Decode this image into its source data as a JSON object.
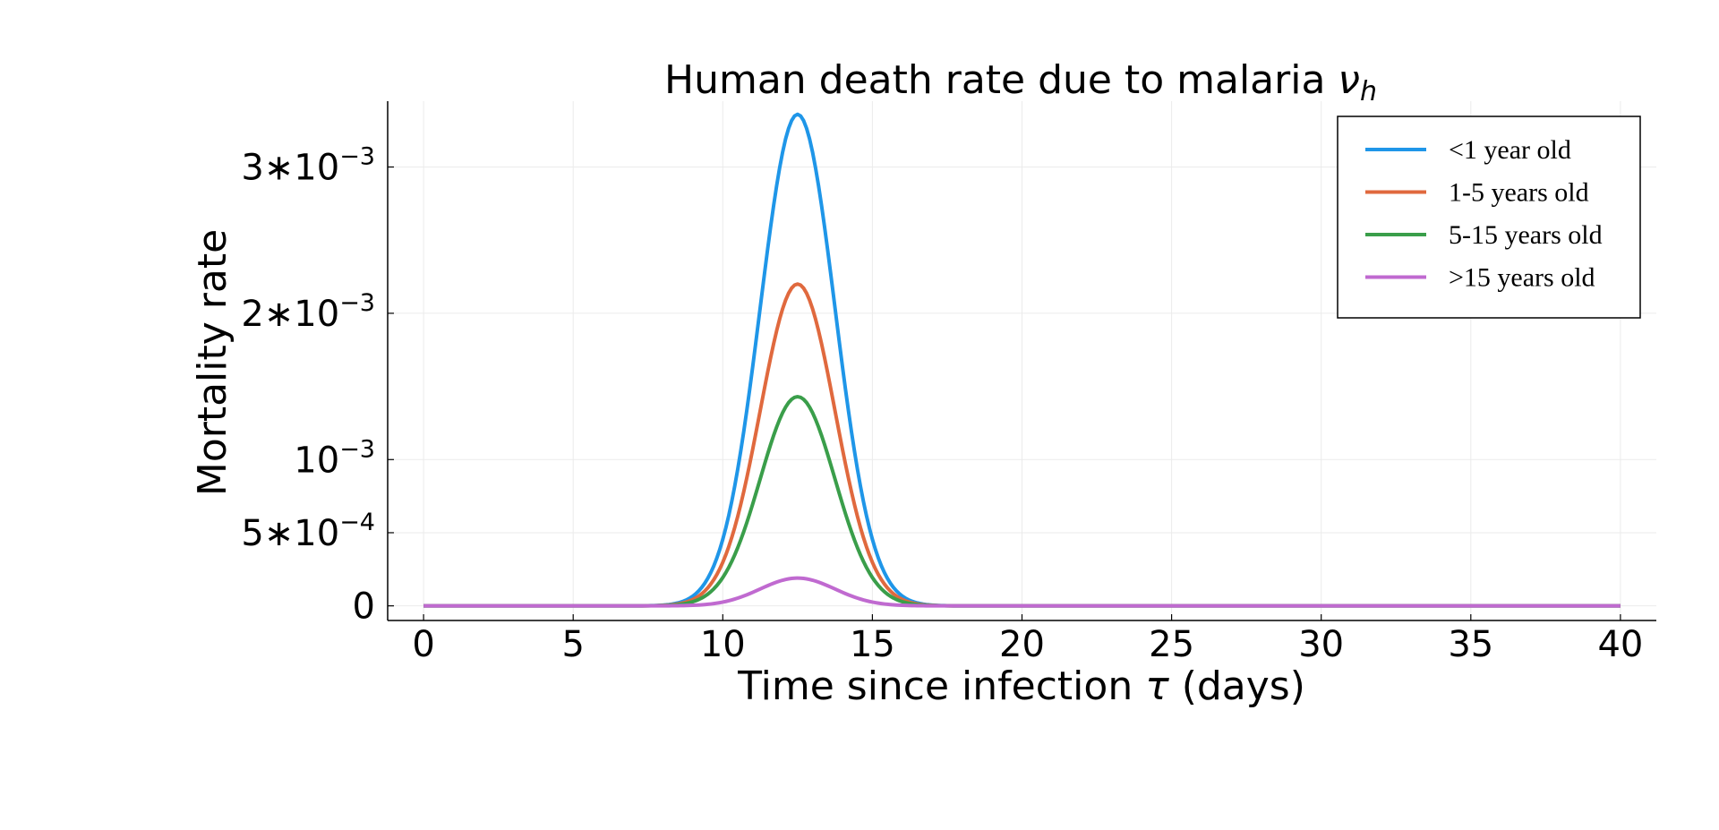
{
  "chart_data": {
    "type": "line",
    "title": "Human death rate due to malaria ",
    "title_symbol": "ν",
    "title_subscript": "h",
    "xlabel_prefix": "Time since infection ",
    "xlabel_symbol": "τ",
    "xlabel_suffix": " (days)",
    "ylabel": "Mortality rate",
    "xlim": [
      -1.2,
      41.2
    ],
    "ylim": [
      -0.0001,
      0.00345
    ],
    "x_ticks": [
      {
        "value": 0,
        "label": "0"
      },
      {
        "value": 5,
        "label": "5"
      },
      {
        "value": 10,
        "label": "10"
      },
      {
        "value": 15,
        "label": "15"
      },
      {
        "value": 20,
        "label": "20"
      },
      {
        "value": 25,
        "label": "25"
      },
      {
        "value": 30,
        "label": "30"
      },
      {
        "value": 35,
        "label": "35"
      },
      {
        "value": 40,
        "label": "40"
      }
    ],
    "y_ticks": [
      {
        "value": 0,
        "mantissa": "",
        "exponent": "",
        "plain": "0"
      },
      {
        "value": 0.0005,
        "mantissa": "5∗",
        "exponent": "−4",
        "plain": ""
      },
      {
        "value": 0.001,
        "mantissa": "",
        "exponent": "−3",
        "plain": ""
      },
      {
        "value": 0.002,
        "mantissa": "2∗",
        "exponent": "−3",
        "plain": ""
      },
      {
        "value": 0.003,
        "mantissa": "3∗",
        "exponent": "−3",
        "plain": ""
      }
    ],
    "tick_base": "10",
    "grid": true,
    "legend_position": "top-right",
    "curve_model": {
      "form": "gaussian",
      "center": 12.5,
      "sigma": 1.25,
      "x_start": 0,
      "x_end": 40,
      "step": 0.1
    },
    "series": [
      {
        "name": "<1 year old",
        "peak": 0.00336,
        "color": "#1f96e8"
      },
      {
        "name": "1-5 years old",
        "peak": 0.0022,
        "color": "#e0693e"
      },
      {
        "name": "5-15 years old",
        "peak": 0.00143,
        "color": "#3a9e4a"
      },
      {
        "name": ">15 years old",
        "peak": 0.00019,
        "color": "#c06ad0"
      }
    ]
  }
}
